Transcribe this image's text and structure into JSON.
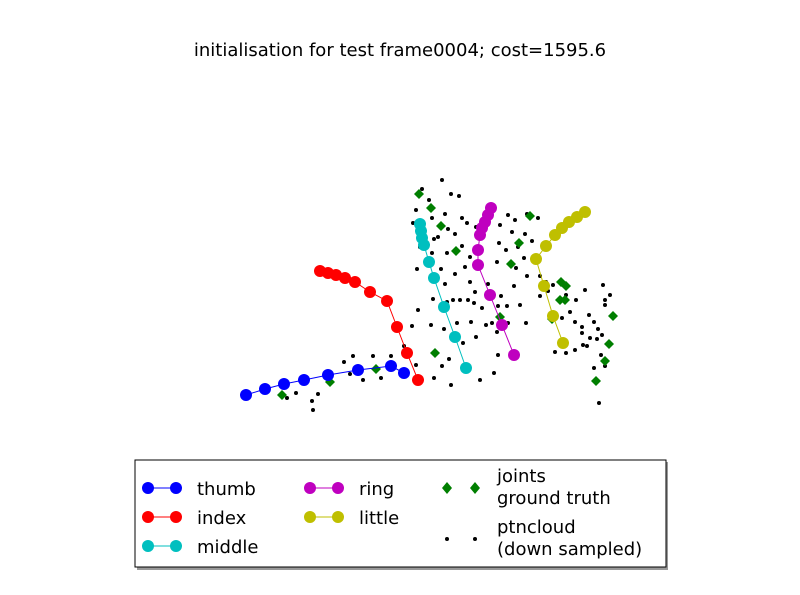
{
  "chart_data": {
    "type": "scatter",
    "title": "initialisation for test frame0004; cost=1595.6",
    "xlabel": "",
    "ylabel": "",
    "axes_visible": false,
    "legend_position": "bottom-center",
    "series": [
      {
        "name": "thumb",
        "color": "#0000ff",
        "kind": "line-marker",
        "points": [
          [
            246,
            395
          ],
          [
            265,
            389
          ],
          [
            284,
            384
          ],
          [
            304,
            380
          ],
          [
            328,
            375
          ],
          [
            358,
            370
          ],
          [
            391,
            366
          ],
          [
            404,
            373
          ]
        ]
      },
      {
        "name": "index",
        "color": "#ff0000",
        "kind": "line-marker",
        "points": [
          [
            320,
            271
          ],
          [
            328,
            273
          ],
          [
            336,
            275
          ],
          [
            345,
            278
          ],
          [
            355,
            282
          ],
          [
            370,
            292
          ],
          [
            387,
            301
          ],
          [
            397,
            327
          ],
          [
            407,
            353
          ],
          [
            418,
            380
          ]
        ]
      },
      {
        "name": "middle",
        "color": "#00bfbf",
        "kind": "line-marker",
        "points": [
          [
            420,
            224
          ],
          [
            421,
            231
          ],
          [
            422,
            238
          ],
          [
            424,
            245
          ],
          [
            429,
            262
          ],
          [
            434,
            278
          ],
          [
            444,
            307
          ],
          [
            455,
            337
          ],
          [
            466,
            368
          ]
        ]
      },
      {
        "name": "ring",
        "color": "#bf00bf",
        "kind": "line-marker",
        "points": [
          [
            491,
            208
          ],
          [
            488,
            215
          ],
          [
            485,
            222
          ],
          [
            482,
            228
          ],
          [
            480,
            235
          ],
          [
            478,
            250
          ],
          [
            478,
            265
          ],
          [
            490,
            295
          ],
          [
            502,
            325
          ],
          [
            514,
            355
          ]
        ]
      },
      {
        "name": "little",
        "color": "#bfbf00",
        "kind": "line-marker",
        "points": [
          [
            585,
            212
          ],
          [
            577,
            217
          ],
          [
            569,
            222
          ],
          [
            562,
            228
          ],
          [
            555,
            235
          ],
          [
            546,
            246
          ],
          [
            536,
            259
          ],
          [
            544,
            286
          ],
          [
            553,
            316
          ],
          [
            563,
            343
          ]
        ]
      },
      {
        "name": "joints\nground truth",
        "color": "#007f00",
        "kind": "diamond",
        "points": [
          [
            282,
            395
          ],
          [
            330,
            382
          ],
          [
            376,
            369
          ],
          [
            435,
            353
          ],
          [
            419,
            194
          ],
          [
            431,
            208
          ],
          [
            441,
            226
          ],
          [
            456,
            251
          ],
          [
            500,
            317
          ],
          [
            511,
            264
          ],
          [
            519,
            243
          ],
          [
            530,
            216
          ],
          [
            561,
            282
          ],
          [
            565,
            300
          ],
          [
            560,
            300
          ],
          [
            566,
            286
          ],
          [
            552,
            319
          ],
          [
            613,
            316
          ],
          [
            609,
            344
          ],
          [
            605,
            361
          ],
          [
            596,
            381
          ],
          [
            420,
            231
          ]
        ]
      },
      {
        "name": "ptncloud\n(down sampled)",
        "color": "#000000",
        "kind": "dot",
        "points": [
          [
            442,
            180
          ],
          [
            422,
            189
          ],
          [
            451,
            194
          ],
          [
            429,
            200
          ],
          [
            459,
            196
          ],
          [
            416,
            210
          ],
          [
            445,
            214
          ],
          [
            432,
            218
          ],
          [
            462,
            218
          ],
          [
            467,
            223
          ],
          [
            413,
            223
          ],
          [
            438,
            237
          ],
          [
            448,
            229
          ],
          [
            455,
            234
          ],
          [
            476,
            227
          ],
          [
            508,
            215
          ],
          [
            515,
            220
          ],
          [
            527,
            214
          ],
          [
            538,
            218
          ],
          [
            500,
            225
          ],
          [
            512,
            232
          ],
          [
            525,
            234
          ],
          [
            532,
            241
          ],
          [
            499,
            243
          ],
          [
            518,
            247
          ],
          [
            506,
            250
          ],
          [
            497,
            262
          ],
          [
            516,
            268
          ],
          [
            524,
            258
          ],
          [
            527,
            276
          ],
          [
            540,
            276
          ],
          [
            546,
            282
          ],
          [
            553,
            285
          ],
          [
            548,
            291
          ],
          [
            540,
            296
          ],
          [
            514,
            286
          ],
          [
            501,
            296
          ],
          [
            507,
            306
          ],
          [
            498,
            306
          ],
          [
            520,
            305
          ],
          [
            526,
            323
          ],
          [
            508,
            323
          ],
          [
            492,
            323
          ],
          [
            497,
            332
          ],
          [
            486,
            325
          ],
          [
            482,
            308
          ],
          [
            474,
            303
          ],
          [
            468,
            300
          ],
          [
            460,
            300
          ],
          [
            453,
            300
          ],
          [
            447,
            302
          ],
          [
            475,
            292
          ],
          [
            488,
            284
          ],
          [
            470,
            282
          ],
          [
            455,
            274
          ],
          [
            465,
            267
          ],
          [
            445,
            284
          ],
          [
            441,
            269
          ],
          [
            447,
            253
          ],
          [
            462,
            246
          ],
          [
            470,
            257
          ],
          [
            434,
            239
          ],
          [
            432,
            253
          ],
          [
            420,
            247
          ],
          [
            417,
            269
          ],
          [
            433,
            299
          ],
          [
            418,
            310
          ],
          [
            412,
            326
          ],
          [
            431,
            325
          ],
          [
            444,
            329
          ],
          [
            457,
            323
          ],
          [
            471,
            322
          ],
          [
            476,
            337
          ],
          [
            463,
            343
          ],
          [
            449,
            359
          ],
          [
            442,
            366
          ],
          [
            434,
            378
          ],
          [
            451,
            385
          ],
          [
            480,
            380
          ],
          [
            494,
            373
          ],
          [
            498,
            355
          ],
          [
            416,
            365
          ],
          [
            404,
            346
          ],
          [
            391,
            356
          ],
          [
            373,
            356
          ],
          [
            353,
            356
          ],
          [
            344,
            362
          ],
          [
            350,
            374
          ],
          [
            363,
            380
          ],
          [
            381,
            378
          ],
          [
            318,
            394
          ],
          [
            312,
            401
          ],
          [
            313,
            410
          ],
          [
            296,
            393
          ],
          [
            287,
            398
          ],
          [
            562,
            318
          ],
          [
            575,
            322
          ],
          [
            582,
            327
          ],
          [
            589,
            315
          ],
          [
            594,
            322
          ],
          [
            598,
            329
          ],
          [
            602,
            335
          ],
          [
            597,
            339
          ],
          [
            590,
            338
          ],
          [
            583,
            345
          ],
          [
            575,
            350
          ],
          [
            566,
            353
          ],
          [
            555,
            352
          ],
          [
            576,
            300
          ],
          [
            585,
            290
          ],
          [
            603,
            285
          ],
          [
            605,
            300
          ],
          [
            605,
            305
          ],
          [
            610,
            295
          ],
          [
            582,
            333
          ],
          [
            587,
            346
          ],
          [
            601,
            355
          ],
          [
            605,
            366
          ],
          [
            599,
            403
          ],
          [
            594,
            368
          ],
          [
            566,
            295
          ],
          [
            570,
            312
          ]
        ]
      }
    ]
  },
  "legend": {
    "col1": [
      "thumb",
      "index",
      "middle"
    ],
    "col2": [
      "ring",
      "little"
    ],
    "col3_joints_line1": "joints",
    "col3_joints_line2": "ground truth",
    "col3_ptn_line1": "ptncloud",
    "col3_ptn_line2": "(down sampled)"
  }
}
